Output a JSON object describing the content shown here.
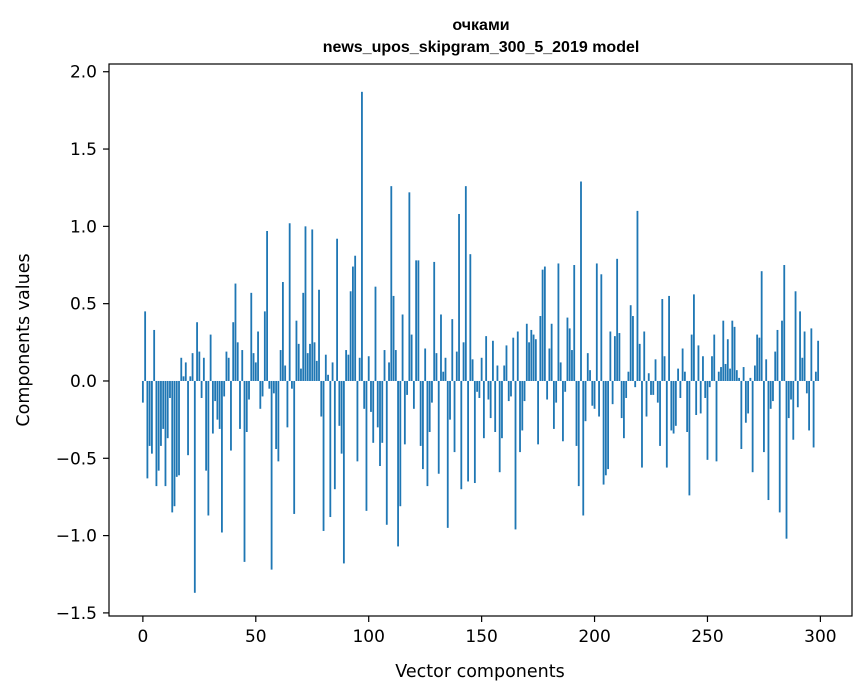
{
  "chart_data": {
    "type": "bar",
    "title_line1": "очками",
    "title_line2": "news_upos_skipgram_300_5_2019 model",
    "xlabel": "Vector components",
    "ylabel": "Components values",
    "xlim": [
      -15,
      314
    ],
    "ylim": [
      -1.52,
      2.05
    ],
    "xticks": [
      0,
      50,
      100,
      150,
      200,
      250,
      300
    ],
    "xtick_labels": [
      "0",
      "50",
      "100",
      "150",
      "200",
      "250",
      "300"
    ],
    "yticks": [
      2.0,
      1.5,
      1.0,
      0.5,
      0.0,
      -0.5,
      -1.0,
      -1.5
    ],
    "ytick_labels": [
      "2.0",
      "1.5",
      "1.0",
      "0.5",
      "0.0",
      "−0.5",
      "−1.0",
      "−1.5"
    ],
    "bar_color": "#1f77b4",
    "x": "0..299",
    "values": [
      -0.14,
      0.45,
      -0.63,
      -0.42,
      -0.47,
      0.33,
      -0.68,
      -0.58,
      -0.42,
      -0.31,
      -0.68,
      -0.37,
      -0.11,
      -0.85,
      -0.81,
      -0.62,
      -0.61,
      0.15,
      0.03,
      0.12,
      -0.48,
      0.03,
      0.18,
      -1.37,
      0.38,
      0.19,
      -0.11,
      0.15,
      -0.58,
      -0.87,
      0.3,
      -0.34,
      -0.13,
      -0.25,
      -0.31,
      -0.98,
      -0.1,
      0.19,
      0.15,
      -0.45,
      0.38,
      0.63,
      0.25,
      -0.31,
      0.2,
      -1.17,
      -0.33,
      -0.12,
      0.57,
      0.18,
      0.12,
      0.32,
      -0.18,
      -0.1,
      0.45,
      0.97,
      -0.05,
      -1.22,
      -0.08,
      -0.44,
      -0.52,
      0.2,
      0.64,
      0.1,
      -0.3,
      1.02,
      -0.05,
      -0.86,
      0.39,
      0.24,
      0.08,
      0.57,
      1.0,
      0.18,
      0.24,
      0.98,
      0.25,
      0.13,
      0.59,
      -0.23,
      -0.97,
      0.17,
      0.04,
      -0.88,
      0.12,
      -0.7,
      0.92,
      -0.29,
      -0.47,
      -1.18,
      0.2,
      0.17,
      0.58,
      0.74,
      0.81,
      -0.52,
      0.15,
      1.87,
      -0.18,
      -0.84,
      0.16,
      -0.2,
      -0.4,
      0.61,
      -0.3,
      -0.55,
      -0.4,
      0.2,
      -0.93,
      0.12,
      1.26,
      0.55,
      0.2,
      -1.07,
      -0.81,
      0.43,
      -0.41,
      -0.09,
      1.22,
      0.3,
      -0.18,
      0.78,
      0.78,
      -0.42,
      -0.57,
      0.21,
      -0.68,
      -0.33,
      -0.14,
      0.77,
      0.18,
      -0.6,
      0.43,
      0.06,
      0.15,
      -0.95,
      -0.25,
      0.4,
      -0.46,
      0.19,
      1.08,
      -0.7,
      0.25,
      1.26,
      -0.65,
      0.82,
      0.14,
      -0.66,
      -0.07,
      -0.11,
      0.15,
      -0.37,
      0.29,
      -0.12,
      -0.24,
      0.26,
      -0.33,
      0.1,
      -0.59,
      -0.37,
      0.1,
      0.23,
      -0.13,
      -0.1,
      0.28,
      -0.96,
      0.32,
      -0.46,
      -0.32,
      -0.13,
      0.37,
      0.25,
      0.33,
      0.3,
      0.27,
      -0.41,
      0.42,
      0.72,
      0.74,
      -0.12,
      0.21,
      0.37,
      -0.31,
      -0.14,
      0.76,
      0.12,
      -0.39,
      -0.07,
      0.41,
      0.34,
      0.2,
      0.75,
      -0.42,
      -0.68,
      1.29,
      -0.87,
      -0.26,
      0.18,
      0.07,
      -0.16,
      -0.18,
      0.76,
      -0.23,
      0.69,
      -0.67,
      -0.61,
      -0.57,
      0.32,
      -0.15,
      0.29,
      0.79,
      0.31,
      -0.24,
      -0.37,
      -0.11,
      0.06,
      0.49,
      0.42,
      -0.04,
      1.1,
      0.24,
      -0.56,
      0.32,
      -0.23,
      0.05,
      -0.09,
      -0.09,
      0.14,
      -0.14,
      -0.42,
      0.53,
      0.16,
      -0.56,
      0.55,
      -0.32,
      -0.34,
      -0.29,
      0.08,
      -0.11,
      0.21,
      0.06,
      -0.33,
      -0.74,
      0.3,
      0.56,
      -0.22,
      0.23,
      -0.21,
      0.16,
      -0.11,
      -0.51,
      -0.04,
      0.16,
      0.3,
      -0.52,
      0.06,
      0.09,
      0.39,
      0.11,
      0.27,
      0.08,
      0.39,
      0.35,
      0.07,
      0.02,
      -0.44,
      0.09,
      -0.27,
      -0.21,
      0.02,
      -0.59,
      0.1,
      0.3,
      0.28,
      0.71,
      -0.46,
      0.14,
      -0.77,
      -0.18,
      -0.13,
      0.19,
      0.33,
      -0.85,
      0.39,
      0.75,
      -1.02,
      -0.24,
      -0.12,
      -0.38,
      0.58,
      -0.17,
      0.45,
      0.15,
      0.32,
      -0.08,
      -0.32,
      0.34,
      -0.43,
      0.06,
      0.26
    ]
  }
}
